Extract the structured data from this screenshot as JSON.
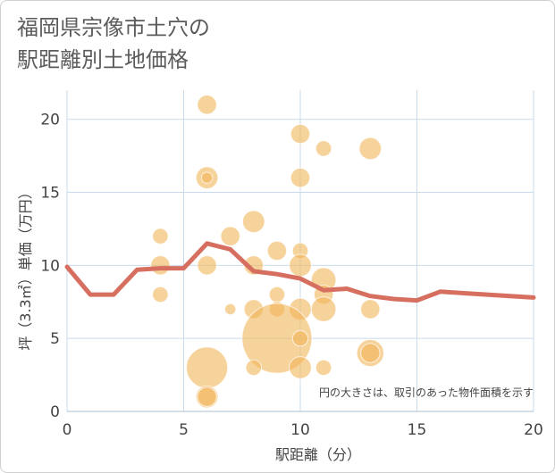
{
  "title": {
    "line1": "福岡県宗像市土穴の",
    "line2": "駅距離別土地価格"
  },
  "colors": {
    "line": "#d66f5f",
    "bubble": "#f2b65a",
    "grid": "#c9dbea",
    "axis_text": "#444444",
    "title_text": "#5b5b5b"
  },
  "chart_data": {
    "type": "scatter",
    "title": "福岡県宗像市土穴の駅距離別土地価格",
    "xlabel": "駅距離（分）",
    "ylabel": "坪（3.3㎡）単価（万円）",
    "xlim": [
      0,
      20
    ],
    "ylim": [
      0,
      22
    ],
    "x_ticks": [
      "0",
      "5",
      "10",
      "15",
      "20"
    ],
    "y_ticks": [
      "0",
      "5",
      "10",
      "15",
      "20"
    ],
    "grid": true,
    "annotation": "円の大きさは、取引のあった物件面積を示す",
    "line": {
      "x": [
        0,
        1,
        2,
        3,
        4,
        5,
        6,
        7,
        8,
        9,
        10,
        11,
        12,
        13,
        14,
        15,
        16,
        17,
        18,
        19,
        20
      ],
      "y": [
        9.9,
        8.0,
        8.0,
        9.7,
        9.8,
        9.8,
        11.5,
        11.1,
        9.6,
        9.4,
        9.1,
        8.3,
        8.4,
        7.9,
        7.7,
        7.6,
        8.2,
        8.1,
        8.0,
        7.9,
        7.8
      ]
    },
    "bubbles": [
      {
        "x": 6,
        "y": 21,
        "size": 3
      },
      {
        "x": 10,
        "y": 19,
        "size": 3
      },
      {
        "x": 11,
        "y": 18,
        "size": 2
      },
      {
        "x": 13,
        "y": 18,
        "size": 4
      },
      {
        "x": 6,
        "y": 16,
        "size": 4
      },
      {
        "x": 6,
        "y": 16,
        "size": 1
      },
      {
        "x": 10,
        "y": 16,
        "size": 3
      },
      {
        "x": 8,
        "y": 13,
        "size": 4
      },
      {
        "x": 4,
        "y": 12,
        "size": 2
      },
      {
        "x": 7,
        "y": 12,
        "size": 3
      },
      {
        "x": 9,
        "y": 11,
        "size": 3
      },
      {
        "x": 10,
        "y": 11,
        "size": 2
      },
      {
        "x": 4,
        "y": 10,
        "size": 3
      },
      {
        "x": 6,
        "y": 10,
        "size": 3
      },
      {
        "x": 8,
        "y": 10,
        "size": 3
      },
      {
        "x": 10,
        "y": 10,
        "size": 4
      },
      {
        "x": 11,
        "y": 9,
        "size": 5
      },
      {
        "x": 4,
        "y": 8,
        "size": 2
      },
      {
        "x": 9,
        "y": 8,
        "size": 2
      },
      {
        "x": 11,
        "y": 8,
        "size": 3
      },
      {
        "x": 7,
        "y": 7,
        "size": 1
      },
      {
        "x": 8,
        "y": 7,
        "size": 3
      },
      {
        "x": 9,
        "y": 7,
        "size": 2
      },
      {
        "x": 10,
        "y": 7,
        "size": 4
      },
      {
        "x": 11,
        "y": 7,
        "size": 5
      },
      {
        "x": 13,
        "y": 7,
        "size": 3
      },
      {
        "x": 9,
        "y": 5,
        "size": 40
      },
      {
        "x": 10,
        "y": 5,
        "size": 2
      },
      {
        "x": 13,
        "y": 4,
        "size": 6
      },
      {
        "x": 13,
        "y": 4,
        "size": 3
      },
      {
        "x": 6,
        "y": 3,
        "size": 14
      },
      {
        "x": 8,
        "y": 3,
        "size": 2
      },
      {
        "x": 10,
        "y": 3,
        "size": 4
      },
      {
        "x": 11,
        "y": 3,
        "size": 2
      },
      {
        "x": 6,
        "y": 1,
        "size": 4
      },
      {
        "x": 6,
        "y": 1,
        "size": 3
      }
    ]
  }
}
